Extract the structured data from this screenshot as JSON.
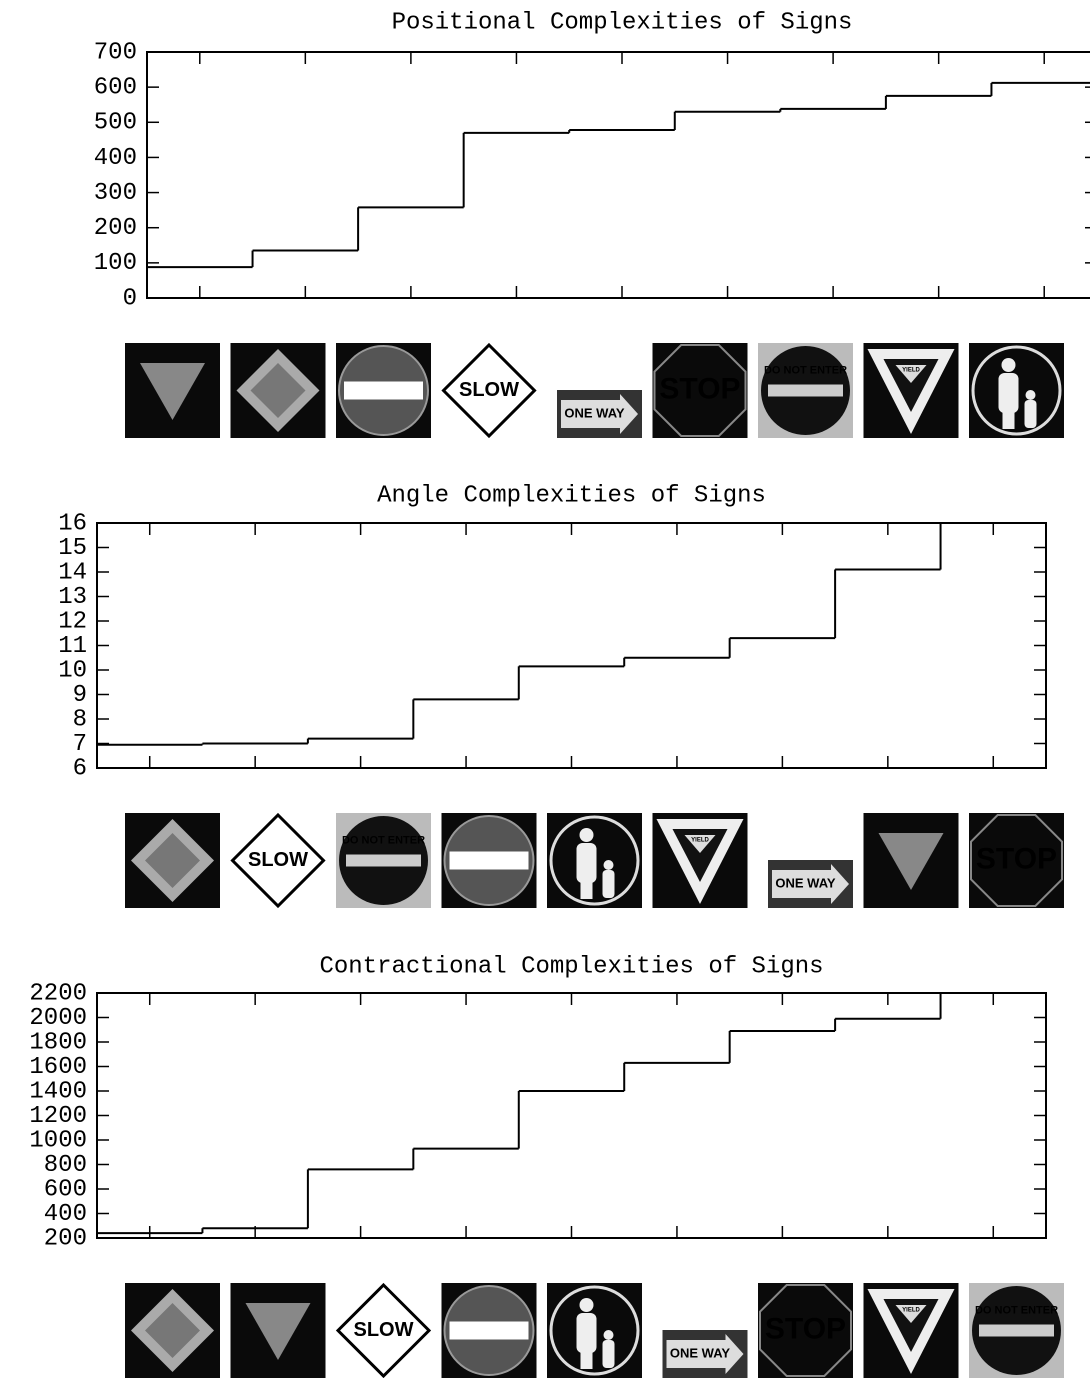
{
  "chart_data": [
    {
      "type": "step",
      "title": "Positional Complexities of Signs",
      "categories": [
        null,
        null,
        null,
        "SLOW",
        "ONE WAY",
        "STOP",
        "DO NOT ENTER",
        "YIELD",
        null
      ],
      "values": [
        88,
        135,
        258,
        470,
        478,
        530,
        538,
        575,
        612
      ],
      "color": "#000000",
      "ylim": [
        0,
        700
      ],
      "yticks": [
        0,
        100,
        200,
        300,
        400,
        500,
        600,
        700
      ]
    },
    {
      "type": "step",
      "title": "Angle Complexities of Signs",
      "categories": [
        null,
        "SLOW",
        "DO NOT ENTER",
        null,
        null,
        "YIELD",
        "ONE WAY",
        null,
        "STOP"
      ],
      "values": [
        6.95,
        7.0,
        7.2,
        8.8,
        10.15,
        10.5,
        11.3,
        14.1,
        16
      ],
      "color": "#000000",
      "ylim": [
        6,
        16
      ],
      "yticks": [
        6,
        7,
        8,
        9,
        10,
        11,
        12,
        13,
        14,
        15,
        16
      ]
    },
    {
      "type": "step",
      "title": "Contractional Complexities of Signs",
      "categories": [
        null,
        null,
        "SLOW",
        null,
        null,
        "ONE WAY",
        "STOP",
        "YIELD",
        "DO NOT ENTER"
      ],
      "values": [
        240,
        280,
        760,
        930,
        1400,
        1630,
        1890,
        1990,
        2200
      ],
      "color": "#000000",
      "ylim": [
        200,
        2200
      ],
      "yticks": [
        200,
        400,
        600,
        800,
        1000,
        1200,
        1400,
        1600,
        1800,
        2000,
        2200
      ]
    }
  ]
}
